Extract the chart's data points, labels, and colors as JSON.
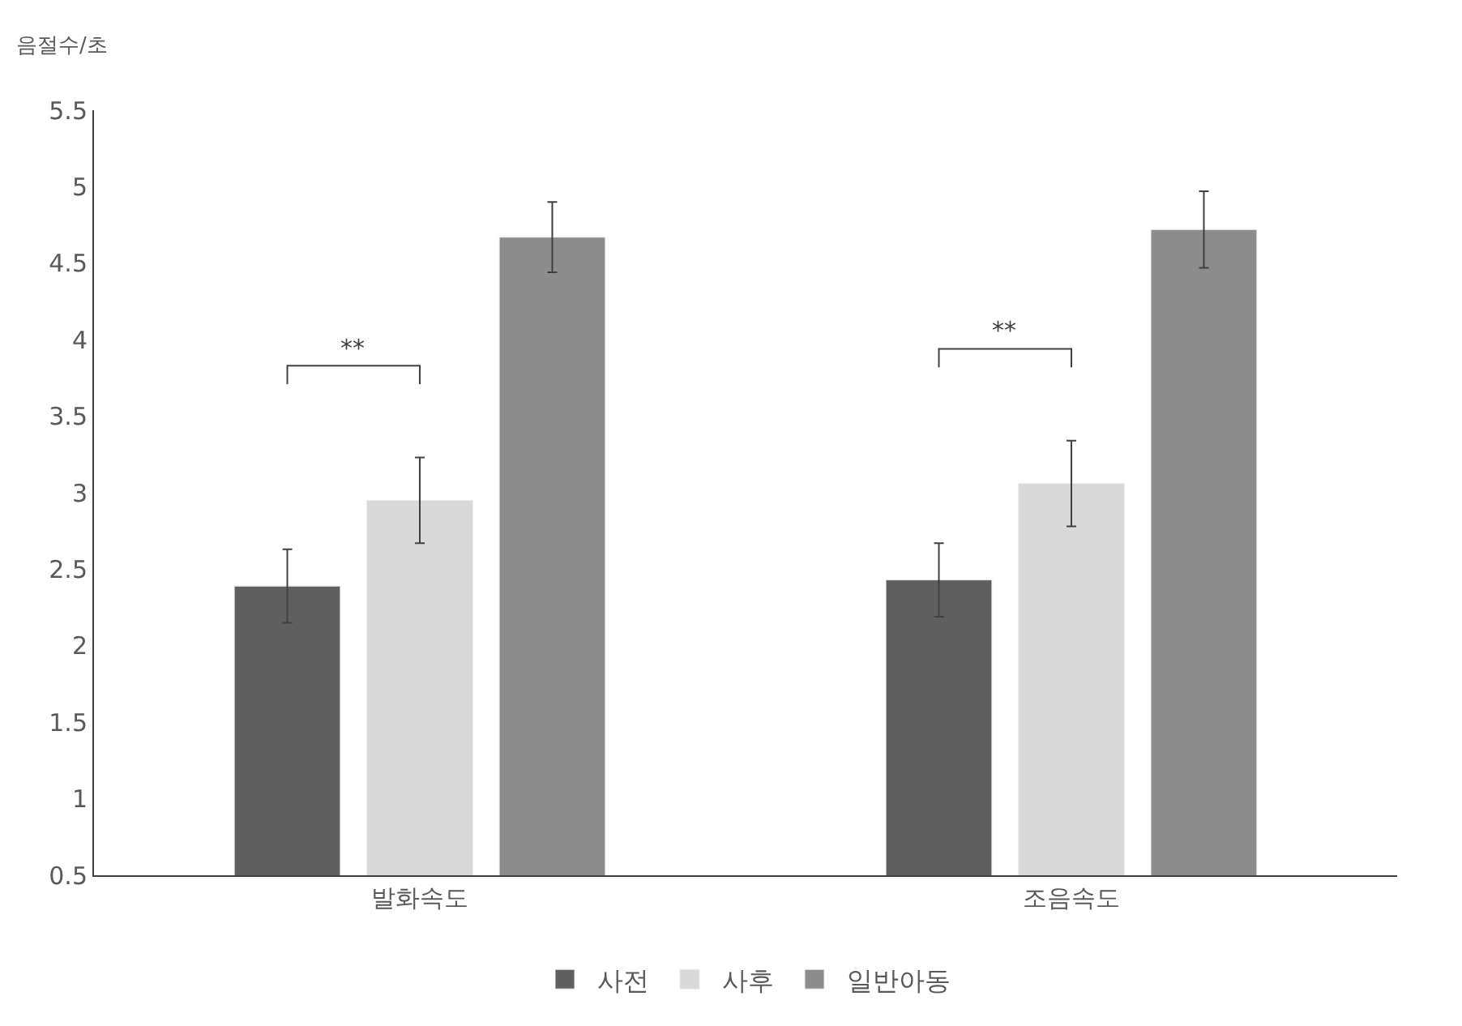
{
  "chart_data": {
    "type": "bar",
    "ylabel": "음절수/초",
    "categories": [
      "발화속도",
      "조음속도"
    ],
    "series": [
      {
        "name": "사전",
        "color": "#5f5f5f",
        "values": [
          2.39,
          2.43
        ],
        "errors": [
          0.24,
          0.24
        ]
      },
      {
        "name": "사후",
        "color": "#d9d9d9",
        "values": [
          2.95,
          3.06
        ],
        "errors": [
          0.28,
          0.28
        ]
      },
      {
        "name": "일반아동",
        "color": "#8c8c8c",
        "values": [
          4.67,
          4.72
        ],
        "errors": [
          0.23,
          0.25
        ]
      }
    ],
    "ylim": [
      0.5,
      5.5
    ],
    "yticks": [
      0.5,
      1,
      1.5,
      2,
      2.5,
      3,
      3.5,
      4,
      4.5,
      5,
      5.5
    ],
    "annotations": [
      "**",
      "**"
    ],
    "grid": false,
    "legend": "bottom"
  }
}
